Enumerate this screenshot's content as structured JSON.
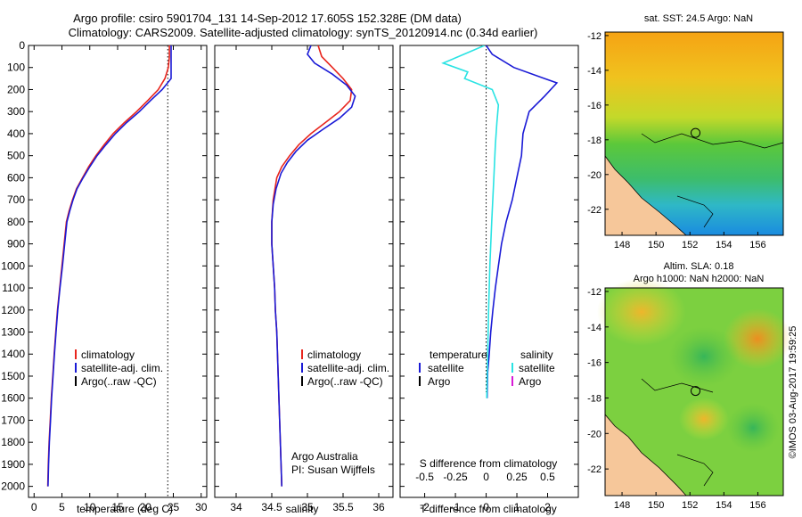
{
  "title": {
    "line1": "Argo profile: csiro 5901704_131 14-Sep-2012 17.605S 152.328E (DM data)",
    "line2": "Climatology: CARS2009. Satellite-adjusted climatology: synTS_20120914.nc (0.34d earlier)"
  },
  "colors": {
    "climatology": "#e8251d",
    "satellite": "#1a1ad6",
    "argo": "#000000",
    "temp_diff": "#29e3e3",
    "sal_diff_argo": "#d81ad6"
  },
  "chart_data": [
    {
      "type": "line",
      "name": "temperature",
      "xlabel": "temperature (deg C)",
      "ylim": [
        2050,
        0
      ],
      "xlim": [
        -1,
        31
      ],
      "xticks": [
        0,
        5,
        10,
        15,
        20,
        25,
        30
      ],
      "xtick_labels": [
        "0",
        "5",
        "10",
        "15",
        "20",
        "25",
        "30"
      ],
      "yticks": [
        0,
        100,
        200,
        300,
        400,
        500,
        600,
        700,
        800,
        900,
        1000,
        1100,
        1200,
        1300,
        1400,
        1500,
        1600,
        1700,
        1800,
        1900,
        2000
      ],
      "ytick_labels": [
        "0",
        "100",
        "200",
        "300",
        "400",
        "500",
        "600",
        "700",
        "800",
        "900",
        "1000",
        "1100",
        "1200",
        "1300",
        "1400",
        "1500",
        "1600",
        "1700",
        "1800",
        "1900",
        "2000"
      ],
      "reference_x": 24,
      "legend": {
        "placement": "lower-center",
        "items": [
          "climatology",
          "satellite-adj. clim.",
          "Argo(..raw -QC)"
        ]
      },
      "series": [
        {
          "name": "climatology",
          "color": "#e8251d",
          "points": [
            [
              24.3,
              0
            ],
            [
              24.3,
              50
            ],
            [
              24.1,
              100
            ],
            [
              23.5,
              150
            ],
            [
              22.3,
              200
            ],
            [
              20.4,
              250
            ],
            [
              18.4,
              300
            ],
            [
              16.2,
              350
            ],
            [
              14.2,
              400
            ],
            [
              12.6,
              450
            ],
            [
              11.1,
              500
            ],
            [
              9.8,
              550
            ],
            [
              8.7,
              600
            ],
            [
              7.6,
              650
            ],
            [
              6.9,
              700
            ],
            [
              6.3,
              750
            ],
            [
              5.8,
              800
            ],
            [
              5.4,
              900
            ],
            [
              5.0,
              1000
            ],
            [
              4.6,
              1100
            ],
            [
              4.2,
              1200
            ],
            [
              3.9,
              1300
            ],
            [
              3.6,
              1400
            ],
            [
              3.35,
              1500
            ],
            [
              3.1,
              1600
            ],
            [
              2.9,
              1700
            ],
            [
              2.7,
              1800
            ],
            [
              2.55,
              1900
            ],
            [
              2.45,
              2000
            ]
          ]
        },
        {
          "name": "satellite-adj. clim.",
          "color": "#1a1ad6",
          "points": [
            [
              24.6,
              0
            ],
            [
              24.6,
              50
            ],
            [
              24.6,
              100
            ],
            [
              24.6,
              150
            ],
            [
              23.0,
              200
            ],
            [
              20.9,
              250
            ],
            [
              18.9,
              300
            ],
            [
              16.6,
              350
            ],
            [
              14.6,
              400
            ],
            [
              12.9,
              450
            ],
            [
              11.3,
              500
            ],
            [
              10.0,
              550
            ],
            [
              8.8,
              600
            ],
            [
              7.7,
              650
            ],
            [
              7.0,
              700
            ],
            [
              6.4,
              750
            ],
            [
              5.9,
              800
            ],
            [
              5.5,
              900
            ],
            [
              5.1,
              1000
            ],
            [
              4.65,
              1100
            ],
            [
              4.25,
              1200
            ],
            [
              3.95,
              1300
            ],
            [
              3.65,
              1400
            ],
            [
              3.4,
              1500
            ],
            [
              3.15,
              1600
            ],
            [
              2.95,
              1700
            ],
            [
              2.75,
              1800
            ],
            [
              2.6,
              1900
            ],
            [
              2.5,
              2000
            ]
          ]
        }
      ]
    },
    {
      "type": "line",
      "name": "salinity",
      "xlabel": "salinity",
      "ylim": [
        2050,
        0
      ],
      "xlim": [
        33.7,
        36.2
      ],
      "xticks": [
        34,
        34.5,
        35,
        35.5,
        36
      ],
      "xtick_labels": [
        "34",
        "34.5",
        "35",
        "35.5",
        "36"
      ],
      "legend": {
        "placement": "lower-center",
        "items": [
          "climatology",
          "satellite-adj. clim.",
          "Argo(..raw -QC)"
        ]
      },
      "annotation": [
        "Argo Australia",
        "PI: Susan Wijffels"
      ],
      "series": [
        {
          "name": "climatology",
          "color": "#e8251d",
          "points": [
            [
              35.15,
              0
            ],
            [
              35.2,
              50
            ],
            [
              35.35,
              100
            ],
            [
              35.5,
              150
            ],
            [
              35.62,
              200
            ],
            [
              35.6,
              250
            ],
            [
              35.45,
              300
            ],
            [
              35.25,
              350
            ],
            [
              35.05,
              400
            ],
            [
              34.88,
              450
            ],
            [
              34.75,
              500
            ],
            [
              34.64,
              550
            ],
            [
              34.57,
              600
            ],
            [
              34.52,
              700
            ],
            [
              34.5,
              800
            ],
            [
              34.5,
              900
            ],
            [
              34.52,
              1000
            ],
            [
              34.54,
              1100
            ],
            [
              34.55,
              1200
            ],
            [
              34.57,
              1300
            ],
            [
              34.58,
              1400
            ],
            [
              34.59,
              1500
            ],
            [
              34.6,
              1600
            ],
            [
              34.61,
              1700
            ],
            [
              34.62,
              1800
            ],
            [
              34.63,
              1900
            ],
            [
              34.64,
              2000
            ]
          ]
        },
        {
          "name": "satellite-adj. clim.",
          "color": "#1a1ad6",
          "points": [
            [
              35.05,
              0
            ],
            [
              35.0,
              40
            ],
            [
              35.1,
              80
            ],
            [
              35.35,
              130
            ],
            [
              35.55,
              180
            ],
            [
              35.67,
              230
            ],
            [
              35.62,
              280
            ],
            [
              35.45,
              330
            ],
            [
              35.22,
              380
            ],
            [
              35.0,
              430
            ],
            [
              34.84,
              480
            ],
            [
              34.72,
              530
            ],
            [
              34.63,
              580
            ],
            [
              34.56,
              650
            ],
            [
              34.52,
              720
            ],
            [
              34.5,
              800
            ],
            [
              34.5,
              900
            ],
            [
              34.52,
              1000
            ],
            [
              34.54,
              1100
            ],
            [
              34.55,
              1200
            ],
            [
              34.57,
              1300
            ],
            [
              34.58,
              1400
            ],
            [
              34.59,
              1500
            ],
            [
              34.6,
              1600
            ],
            [
              34.61,
              1700
            ],
            [
              34.62,
              1800
            ],
            [
              34.63,
              1900
            ],
            [
              34.64,
              2000
            ]
          ]
        }
      ]
    },
    {
      "type": "line",
      "name": "difference",
      "xlabel_bottom": "T difference from climatology",
      "xlabel_top": "S difference from climatology",
      "ylim": [
        2050,
        0
      ],
      "xlim": [
        -2.8,
        3
      ],
      "t_ticks": [
        -2,
        -1,
        0,
        1,
        2
      ],
      "t_tick_labels": [
        "-2",
        "-1",
        "0",
        "1",
        "2"
      ],
      "s_ticks": [
        -0.5,
        -0.25,
        0,
        0.25,
        0.5
      ],
      "s_tick_labels": [
        "-0.5",
        "-0.25",
        "0",
        "0.25",
        "0.5"
      ],
      "legend": {
        "placement": "middle",
        "temperature": {
          "heading": "temperature",
          "items": [
            "satellite",
            "Argo"
          ]
        },
        "salinity": {
          "heading": "salinity",
          "items": [
            "satellite",
            "Argo"
          ]
        }
      },
      "series": [
        {
          "name": "temperature satellite",
          "color": "#1a1ad6",
          "points": [
            [
              0,
              0
            ],
            [
              0.2,
              40
            ],
            [
              0.9,
              100
            ],
            [
              1.9,
              150
            ],
            [
              2.3,
              170
            ],
            [
              1.9,
              230
            ],
            [
              1.4,
              300
            ],
            [
              1.2,
              400
            ],
            [
              1.15,
              500
            ],
            [
              1.0,
              600
            ],
            [
              0.85,
              700
            ],
            [
              0.65,
              800
            ],
            [
              0.5,
              900
            ],
            [
              0.4,
              1000
            ],
            [
              0.3,
              1100
            ],
            [
              0.22,
              1200
            ],
            [
              0.15,
              1300
            ],
            [
              0.1,
              1400
            ],
            [
              0.05,
              1480
            ],
            [
              0.03,
              1600
            ]
          ]
        },
        {
          "name": "temperature climatology diff",
          "color": "#29e3e3",
          "points": [
            [
              -0.05,
              0
            ],
            [
              -1.4,
              80
            ],
            [
              -0.6,
              120
            ],
            [
              -0.7,
              150
            ],
            [
              0.2,
              200
            ],
            [
              0.4,
              270
            ],
            [
              0.35,
              350
            ],
            [
              0.3,
              450
            ],
            [
              0.25,
              600
            ],
            [
              0.18,
              800
            ],
            [
              0.12,
              1000
            ],
            [
              0.08,
              1200
            ],
            [
              0.05,
              1400
            ],
            [
              0.02,
              1600
            ]
          ]
        }
      ]
    },
    {
      "type": "heatmap",
      "name": "sst-map",
      "title": "sat. SST: 24.5  Argo: NaN",
      "xticks": [
        148,
        150,
        152,
        154,
        156
      ],
      "xtick_labels": [
        "148",
        "150",
        "152",
        "154",
        "156"
      ],
      "yticks": [
        -12,
        -14,
        -16,
        -18,
        -20,
        -22
      ],
      "ytick_labels": [
        "-12",
        "-14",
        "-16",
        "-18",
        "-20",
        "-22"
      ],
      "xlim": [
        147,
        157.5
      ],
      "ylim": [
        -23.5,
        -11.8
      ],
      "argo_position": [
        152.328,
        -17.605
      ]
    },
    {
      "type": "heatmap",
      "name": "sla-map",
      "title": "Altim. SLA: 0.18",
      "subtitle": "Argo h1000: NaN  h2000: NaN",
      "xticks": [
        148,
        150,
        152,
        154,
        156
      ],
      "xtick_labels": [
        "148",
        "150",
        "152",
        "154",
        "156"
      ],
      "yticks": [
        -12,
        -14,
        -16,
        -18,
        -20,
        -22
      ],
      "ytick_labels": [
        "-12",
        "-14",
        "-16",
        "-18",
        "-20",
        "-22"
      ],
      "xlim": [
        147,
        157.5
      ],
      "ylim": [
        -23.5,
        -11.8
      ],
      "argo_position": [
        152.328,
        -17.605
      ]
    }
  ],
  "credit": "©IMOS 03-Aug-2017 19:59:25"
}
